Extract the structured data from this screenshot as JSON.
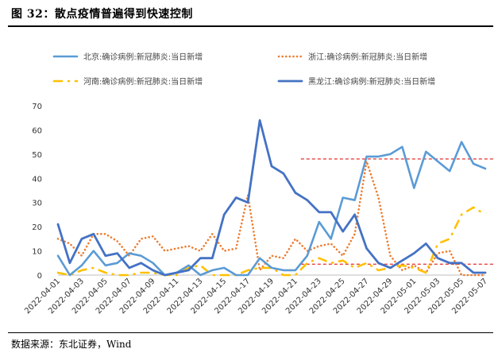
{
  "figure": {
    "title": "图 32：散点疫情普遍得到快速控制",
    "source": "数据来源：东北证券，Wind"
  },
  "colors": {
    "beijing": "#5B9BD5",
    "zhejiang": "#ED7D31",
    "henan": "#FFC000",
    "heilongjiang": "#4472C4",
    "reference": "#E8413C"
  },
  "chart_data": {
    "type": "line",
    "x": [
      "2022-04-01",
      "2022-04-02",
      "2022-04-03",
      "2022-04-04",
      "2022-04-05",
      "2022-04-06",
      "2022-04-07",
      "2022-04-08",
      "2022-04-09",
      "2022-04-10",
      "2022-04-11",
      "2022-04-12",
      "2022-04-13",
      "2022-04-14",
      "2022-04-15",
      "2022-04-16",
      "2022-04-17",
      "2022-04-18",
      "2022-04-19",
      "2022-04-20",
      "2022-04-21",
      "2022-04-22",
      "2022-04-23",
      "2022-04-24",
      "2022-04-25",
      "2022-04-26",
      "2022-04-27",
      "2022-04-28",
      "2022-04-29",
      "2022-04-30",
      "2022-05-01",
      "2022-05-02",
      "2022-05-03",
      "2022-05-04",
      "2022-05-05",
      "2022-05-06",
      "2022-05-07"
    ],
    "x_tick_labels": [
      "2022-04-01",
      "2022-04-03",
      "2022-04-05",
      "2022-04-07",
      "2022-04-09",
      "2022-04-11",
      "2022-04-13",
      "2022-04-15",
      "2022-04-17",
      "2022-04-19",
      "2022-04-21",
      "2022-04-23",
      "2022-04-25",
      "2022-04-27",
      "2022-04-29",
      "2022-05-01",
      "2022-05-03",
      "2022-05-05",
      "2022-05-07"
    ],
    "yticks": [
      0,
      10,
      20,
      30,
      40,
      50,
      60,
      70
    ],
    "ylim": [
      0,
      70
    ],
    "grid": false,
    "legend_position": "top",
    "series": [
      {
        "key": "beijing",
        "name": "北京:确诊病例:新冠肺炎:当日新增",
        "style": "solid",
        "color": "#5B9BD5",
        "values": [
          8,
          0,
          4,
          10,
          4,
          5,
          9,
          8,
          5,
          0,
          1,
          4,
          0,
          2,
          3,
          0,
          0,
          7,
          3,
          2,
          2,
          8,
          22,
          15,
          32,
          31,
          49,
          49,
          50,
          53,
          36,
          51,
          47,
          43,
          55,
          46,
          44
        ]
      },
      {
        "key": "zhejiang",
        "name": "浙江:确诊病例:新冠肺炎:当日新增",
        "style": "dotted",
        "color": "#ED7D31",
        "values": [
          15,
          13,
          8,
          17,
          17,
          14,
          8,
          15,
          16,
          10,
          11,
          12,
          10,
          17,
          10,
          11,
          33,
          2,
          8,
          7,
          15,
          10,
          12,
          13,
          8,
          17,
          47,
          32,
          8,
          2,
          4,
          1,
          9,
          10,
          0,
          0,
          0
        ]
      },
      {
        "key": "henan",
        "name": "河南:确诊病例:新冠肺炎:当日新增",
        "style": "dashdot",
        "color": "#FFC000",
        "values": [
          1,
          0,
          2,
          3,
          1,
          0,
          0,
          1,
          1,
          0,
          0,
          3,
          4,
          0,
          0,
          0,
          2,
          3,
          3,
          0,
          0,
          5,
          7,
          5,
          6,
          3,
          5,
          2,
          3,
          4,
          3,
          1,
          13,
          15,
          25,
          28,
          25
        ]
      },
      {
        "key": "heilongjiang",
        "name": "黑龙江:确诊病例:新冠肺炎:当日新增",
        "style": "solid-thick",
        "color": "#4472C4",
        "values": [
          21,
          5,
          15,
          17,
          8,
          9,
          3,
          5,
          2,
          0,
          1,
          2,
          7,
          7,
          25,
          32,
          30,
          64,
          45,
          42,
          34,
          31,
          26,
          26,
          18,
          25,
          11,
          5,
          3,
          6,
          9,
          13,
          7,
          5,
          5,
          1,
          1
        ]
      }
    ],
    "reference_lines": [
      {
        "y": 48,
        "x_start": "2022-04-22",
        "x_end": "2022-05-07",
        "style": "dashed",
        "color": "#E8413C"
      },
      {
        "y": 4.5,
        "x_start": "2022-04-22",
        "x_end": "2022-05-07",
        "style": "dashed",
        "color": "#E8413C"
      }
    ]
  }
}
